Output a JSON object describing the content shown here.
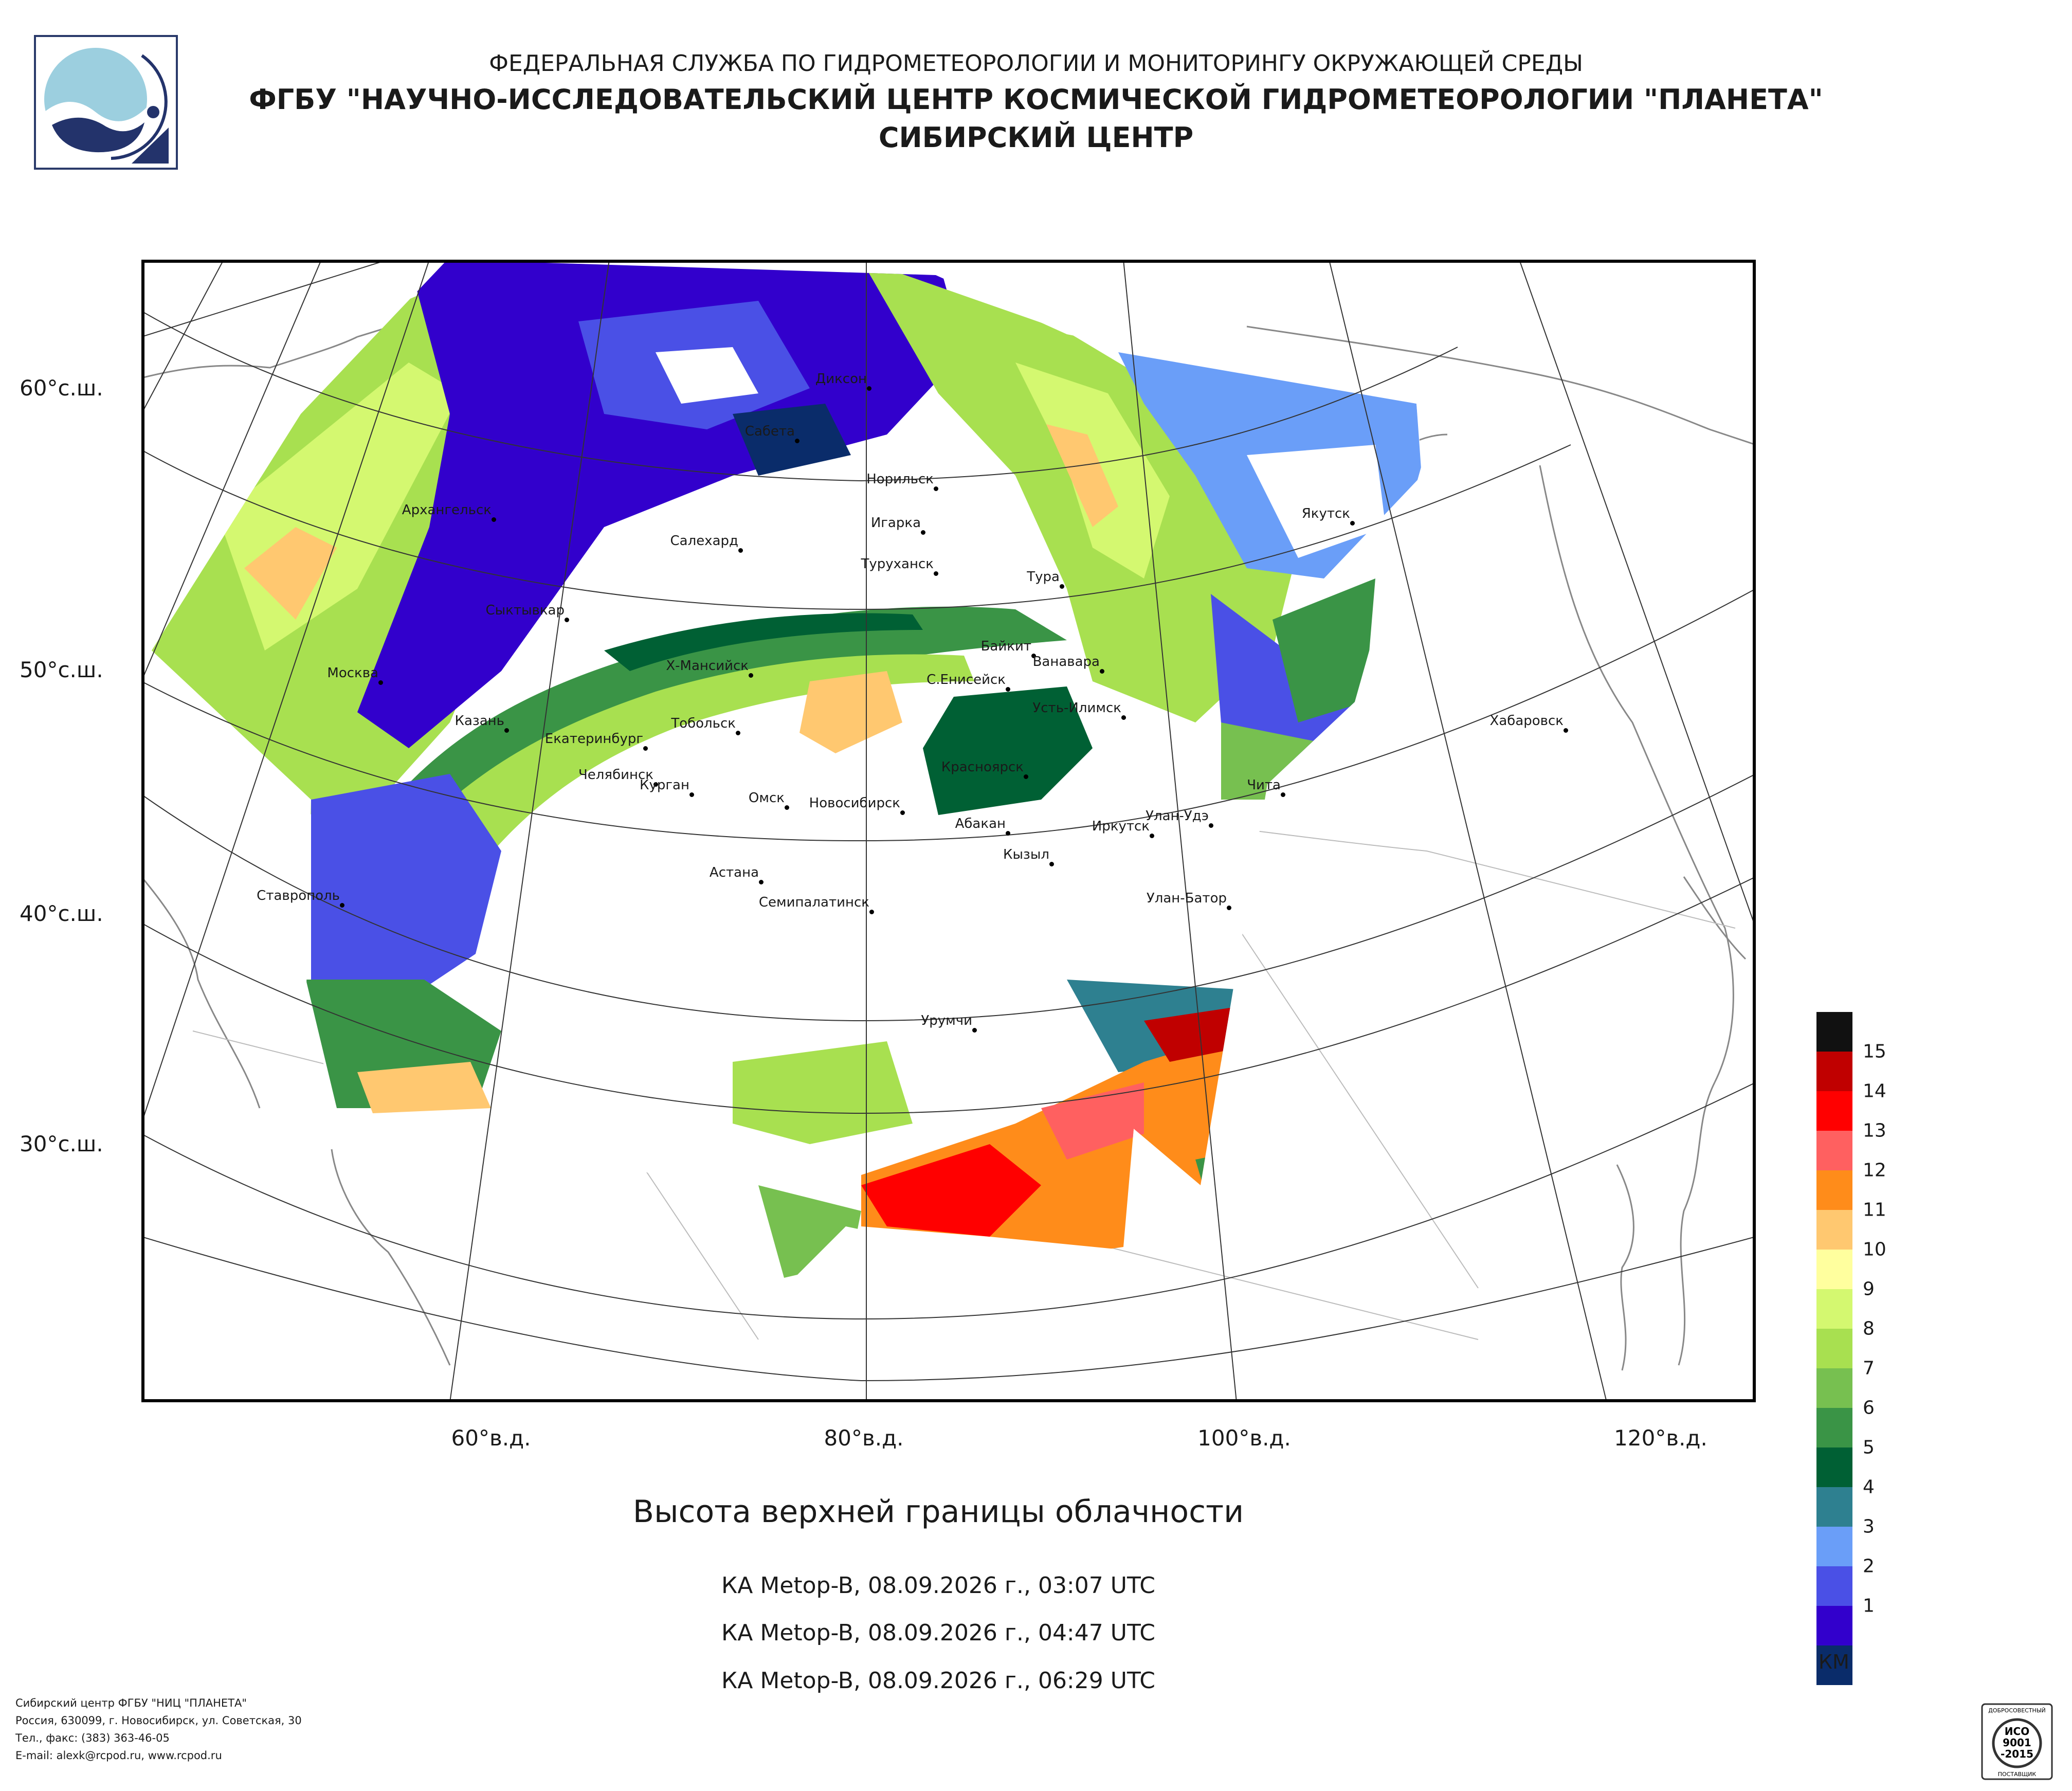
{
  "header": {
    "line1": "ФЕДЕРАЛЬНАЯ СЛУЖБА ПО ГИДРОМЕТЕОРОЛОГИИ И МОНИТОРИНГУ ОКРУЖАЮЩЕЙ СРЕДЫ",
    "line2": "ФГБУ \"НАУЧНО-ИССЛЕДОВАТЕЛЬСКИЙ ЦЕНТР КОСМИЧЕСКОЙ ГИДРОМЕТЕОРОЛОГИИ \"ПЛАНЕТА\"",
    "line3": "СИБИРСКИЙ ЦЕНТР"
  },
  "map": {
    "latitude_labels": [
      "60°с.ш.",
      "50°с.ш.",
      "40°с.ш.",
      "30°с.ш."
    ],
    "longitude_labels": [
      "60°в.д.",
      "80°в.д.",
      "100°в.д.",
      "120°в.д."
    ],
    "cities": [
      "Диксон",
      "Сабета",
      "Норильск",
      "Архангельск",
      "Якутск",
      "Игарка",
      "Салехард",
      "Туруханск",
      "Тура",
      "Сыктывкар",
      "Байкит",
      "Ванавара",
      "Москва",
      "Х-Мансийск",
      "С.Енисейск",
      "Усть-Илимск",
      "Казань",
      "Тобольск",
      "Хабаровск",
      "Екатеринбург",
      "Красноярск",
      "Челябинск",
      "Курган",
      "Чита",
      "Омск",
      "Новосибирск",
      "Улан-Удэ",
      "Абакан",
      "Иркутск",
      "Кызыл",
      "Астана",
      "Ставрополь",
      "Семипалатинск",
      "Улан-Батор",
      "Урумчи"
    ]
  },
  "title": "Высота верхней границы облачности",
  "passes": [
    "КА Metop-B, 08.09.2026 г., 03:07 UTC",
    "КА Metop-B, 08.09.2026 г., 04:47 UTC",
    "КА Metop-B, 08.09.2026 г., 06:29 UTC"
  ],
  "legend": {
    "unit": "КМ",
    "values": [
      "15",
      "14",
      "13",
      "12",
      "11",
      "10",
      "9",
      "8",
      "7",
      "6",
      "5",
      "4",
      "3",
      "2",
      "1"
    ],
    "colors": [
      "#111111",
      "#c00000",
      "#ff0000",
      "#ff6060",
      "#ff8c1a",
      "#ffc870",
      "#ffff9e",
      "#d4f870",
      "#a8e050",
      "#77c050",
      "#3a9446",
      "#006034",
      "#2e8090",
      "#6a9ef8",
      "#4a50e6",
      "#3200cc",
      "#0a2c6a"
    ]
  },
  "footer": {
    "line1": "Сибирский центр ФГБУ \"НИЦ \"ПЛАНЕТА\"",
    "line2": "Россия, 630099, г. Новосибирск, ул. Советская, 30",
    "line3": "Тел., факс: (383) 363-46-05",
    "line4": "E-mail: alexk@rcpod.ru, www.rcpod.ru"
  },
  "cert": {
    "text1": "ДОБРОСОВЕСТНЫЙ",
    "text2": "ИСО",
    "text3": "9001",
    "text4": "-2015",
    "text5": "ПОСТАВЩИК"
  }
}
